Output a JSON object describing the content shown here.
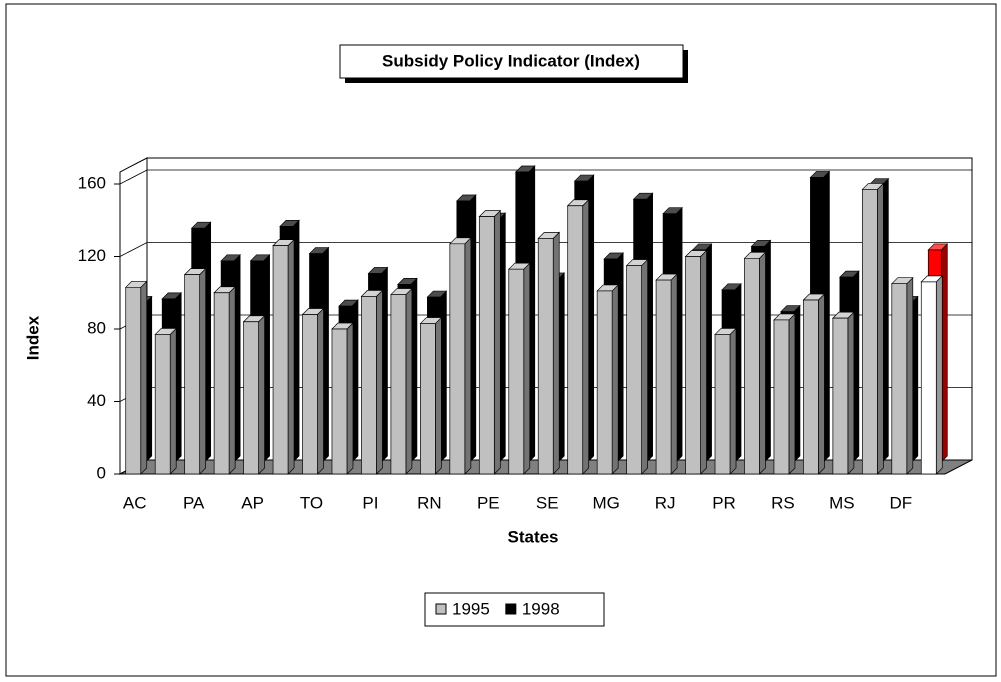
{
  "chart_data": {
    "type": "bar3d",
    "title": "Subsidy Policy Indicator (Index)",
    "x_label": "States",
    "y_label": "Index",
    "categories": [
      "AC",
      null,
      "PA",
      null,
      "AP",
      null,
      "TO",
      null,
      "PI",
      null,
      "RN",
      null,
      "PE",
      null,
      "SE",
      null,
      "MG",
      null,
      "RJ",
      null,
      "PR",
      null,
      "RS",
      null,
      "MS",
      null,
      "DF",
      null
    ],
    "series": [
      {
        "name": "1995",
        "color": "#c0c0c0",
        "values": [
          103,
          77,
          110,
          100,
          84,
          126,
          88,
          80,
          98,
          99,
          83,
          127,
          142,
          113,
          130,
          148,
          101,
          115,
          107,
          120,
          77,
          119,
          85,
          96,
          86,
          157,
          105,
          106
        ]
      },
      {
        "name": "1998",
        "color": "#000000",
        "values": [
          88,
          90,
          129,
          111,
          111,
          130,
          115,
          86,
          104,
          98,
          91,
          144,
          134,
          160,
          101,
          155,
          112,
          145,
          137,
          117,
          95,
          119,
          83,
          157,
          102,
          153,
          88,
          117
        ]
      }
    ],
    "highlight": {
      "index": 27,
      "colors": [
        "#ffffff",
        "#ff0000"
      ]
    },
    "ylim": [
      0,
      160
    ],
    "yticks": [
      0,
      40,
      80,
      120,
      160
    ],
    "grid": true,
    "legend": "bottom"
  }
}
